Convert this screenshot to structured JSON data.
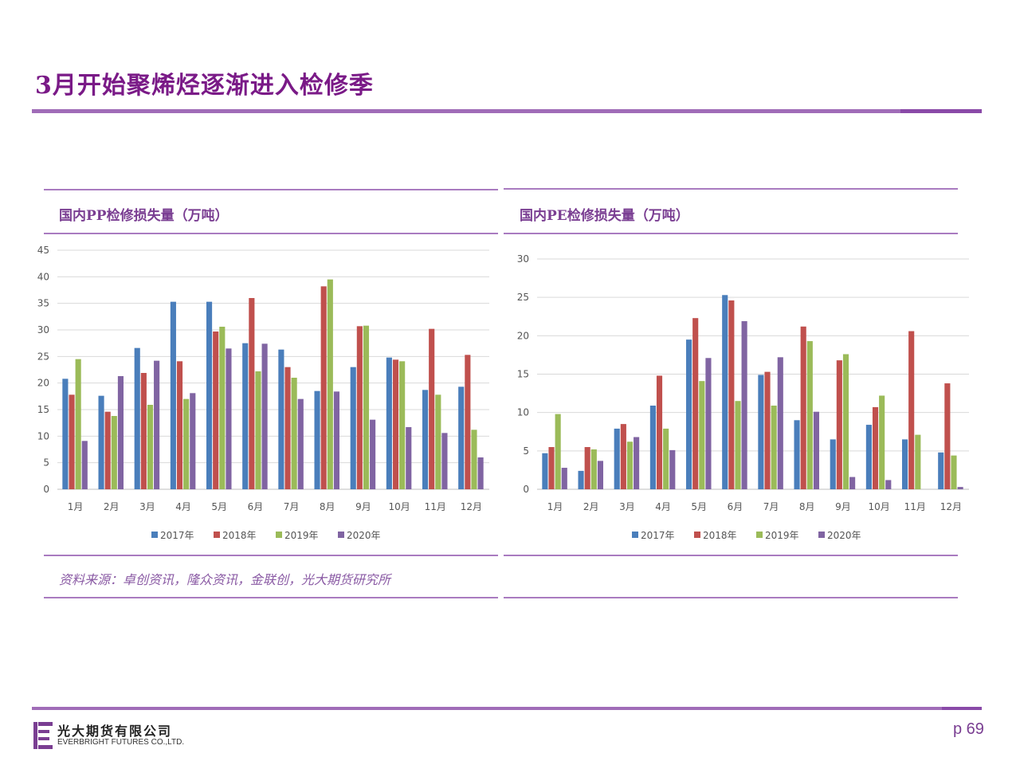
{
  "slide": {
    "title": "3月开始聚烯烃逐渐进入检修季"
  },
  "colors": {
    "2017年": "#4a7ebb",
    "2018年": "#c0504d",
    "2019年": "#9bbb59",
    "2020年": "#8064a2"
  },
  "panels": {
    "left": {
      "title": "国内PP检修损失量（万吨）",
      "source": "资料来源：卓创资讯，隆众资讯，金联创，光大期货研究所"
    },
    "right": {
      "title": "国内PE检修损失量（万吨）"
    }
  },
  "chart_data": [
    {
      "type": "bar",
      "title": "国内PP检修损失量（万吨）",
      "categories": [
        "1月",
        "2月",
        "3月",
        "4月",
        "5月",
        "6月",
        "7月",
        "8月",
        "9月",
        "10月",
        "11月",
        "12月"
      ],
      "ylim": [
        0,
        45
      ],
      "yticks": [
        0,
        5,
        10,
        15,
        20,
        25,
        30,
        35,
        40,
        45
      ],
      "grid": true,
      "legend": "bottom",
      "series": [
        {
          "name": "2017年",
          "values": [
            20.8,
            17.6,
            26.6,
            35.3,
            35.3,
            27.5,
            26.3,
            18.5,
            23.0,
            24.8,
            18.7,
            19.3
          ]
        },
        {
          "name": "2018年",
          "values": [
            17.8,
            14.6,
            21.9,
            24.1,
            29.7,
            36.0,
            23.0,
            38.2,
            30.7,
            24.4,
            30.2,
            25.3
          ]
        },
        {
          "name": "2019年",
          "values": [
            24.5,
            13.8,
            15.9,
            17.0,
            30.6,
            22.2,
            21.0,
            39.5,
            30.8,
            24.1,
            17.8,
            11.2
          ]
        },
        {
          "name": "2020年",
          "values": [
            9.1,
            21.3,
            24.2,
            18.1,
            26.5,
            27.4,
            17.0,
            18.4,
            13.1,
            11.7,
            10.6,
            6.0
          ]
        }
      ]
    },
    {
      "type": "bar",
      "title": "国内PE检修损失量（万吨）",
      "categories": [
        "1月",
        "2月",
        "3月",
        "4月",
        "5月",
        "6月",
        "7月",
        "8月",
        "9月",
        "10月",
        "11月",
        "12月"
      ],
      "ylim": [
        0,
        30
      ],
      "yticks": [
        0,
        5,
        10,
        15,
        20,
        25,
        30
      ],
      "grid": true,
      "legend": "bottom",
      "series": [
        {
          "name": "2017年",
          "values": [
            4.7,
            2.4,
            7.9,
            10.9,
            19.5,
            25.3,
            14.9,
            9.0,
            6.5,
            8.4,
            6.5,
            4.8
          ]
        },
        {
          "name": "2018年",
          "values": [
            5.5,
            5.5,
            8.5,
            14.8,
            22.3,
            24.6,
            15.3,
            21.2,
            16.8,
            10.7,
            20.6,
            13.8
          ]
        },
        {
          "name": "2019年",
          "values": [
            9.8,
            5.2,
            6.2,
            7.9,
            14.1,
            11.5,
            10.9,
            19.3,
            17.6,
            12.2,
            7.1,
            4.4
          ]
        },
        {
          "name": "2020年",
          "values": [
            2.8,
            3.7,
            6.8,
            5.1,
            17.1,
            21.9,
            17.2,
            10.1,
            1.6,
            1.2,
            0,
            0.3
          ]
        }
      ]
    }
  ],
  "footer": {
    "company_cn": "光大期货有限公司",
    "company_en": "EVERBRIGHT FUTURES CO.,LTD.",
    "page": "p 69"
  }
}
